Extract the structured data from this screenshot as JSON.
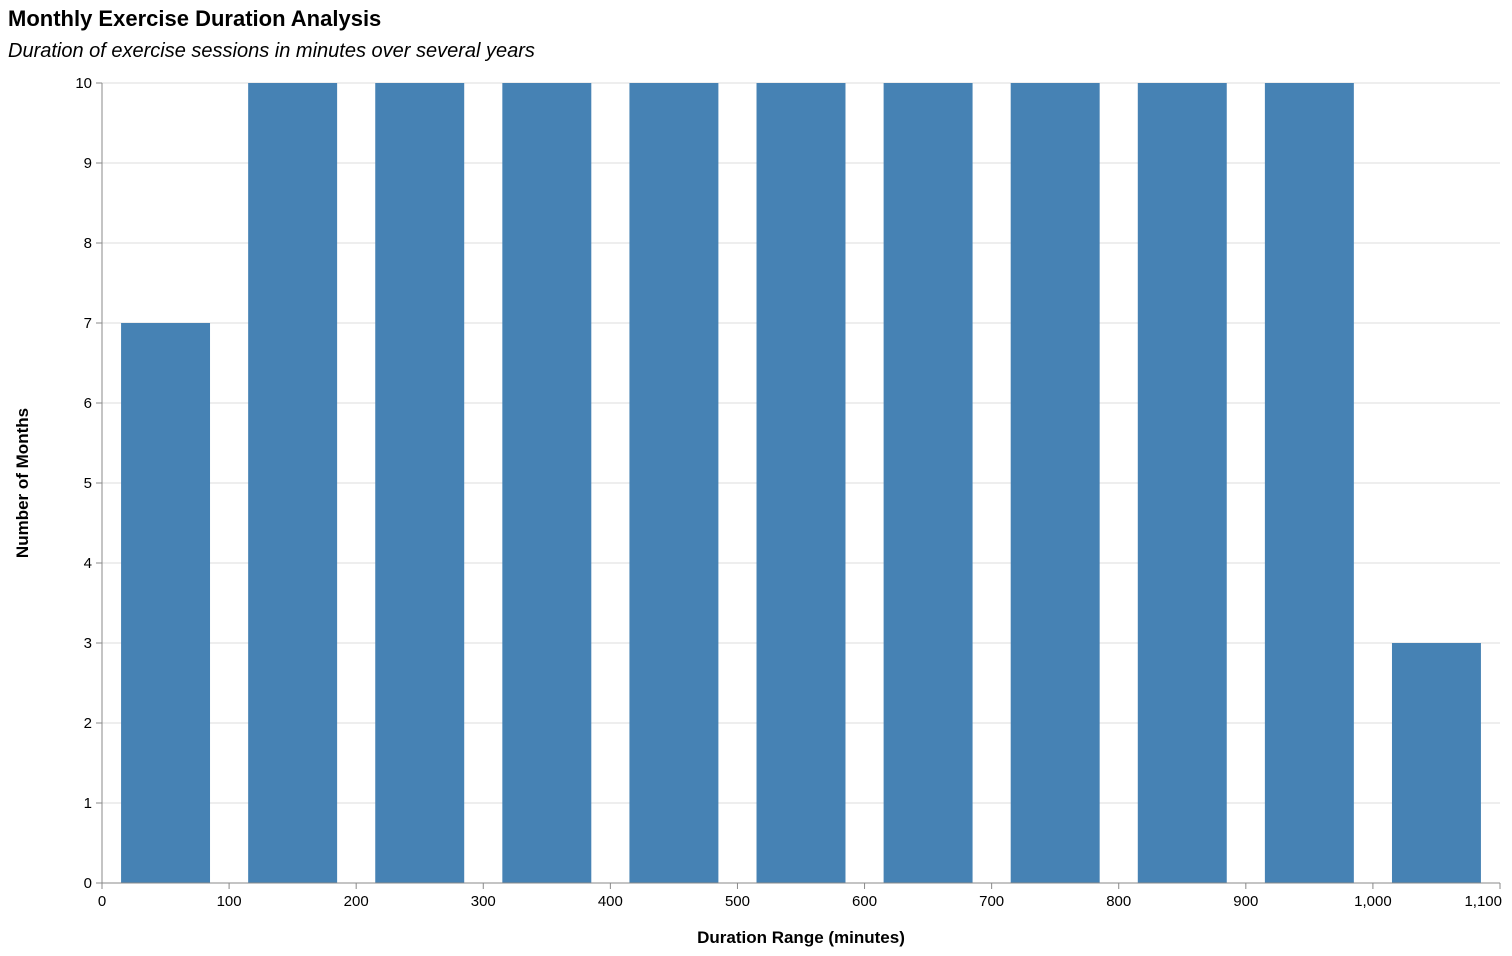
{
  "chart_data": {
    "type": "bar",
    "title": "Monthly Exercise Duration Analysis",
    "subtitle": "Duration of exercise sessions in minutes over several years",
    "xlabel": "Duration Range (minutes)",
    "ylabel": "Number of Months",
    "bar_color": "#4682b4",
    "grid": true,
    "xlim": [
      0,
      1100
    ],
    "ylim": [
      0,
      10
    ],
    "xticks": [
      0,
      100,
      200,
      300,
      400,
      500,
      600,
      700,
      800,
      900,
      1000,
      1100
    ],
    "xtick_labels": [
      "0",
      "100",
      "200",
      "300",
      "400",
      "500",
      "600",
      "700",
      "800",
      "900",
      "1,000",
      "1,100"
    ],
    "yticks": [
      0,
      1,
      2,
      3,
      4,
      5,
      6,
      7,
      8,
      9,
      10
    ],
    "bins": [
      {
        "start": 0,
        "end": 100,
        "count": 7
      },
      {
        "start": 100,
        "end": 200,
        "count": 10
      },
      {
        "start": 200,
        "end": 300,
        "count": 10
      },
      {
        "start": 300,
        "end": 400,
        "count": 10
      },
      {
        "start": 400,
        "end": 500,
        "count": 10
      },
      {
        "start": 500,
        "end": 600,
        "count": 10
      },
      {
        "start": 600,
        "end": 700,
        "count": 10
      },
      {
        "start": 700,
        "end": 800,
        "count": 10
      },
      {
        "start": 800,
        "end": 900,
        "count": 10
      },
      {
        "start": 900,
        "end": 1000,
        "count": 10
      },
      {
        "start": 1000,
        "end": 1100,
        "count": 3
      }
    ]
  }
}
